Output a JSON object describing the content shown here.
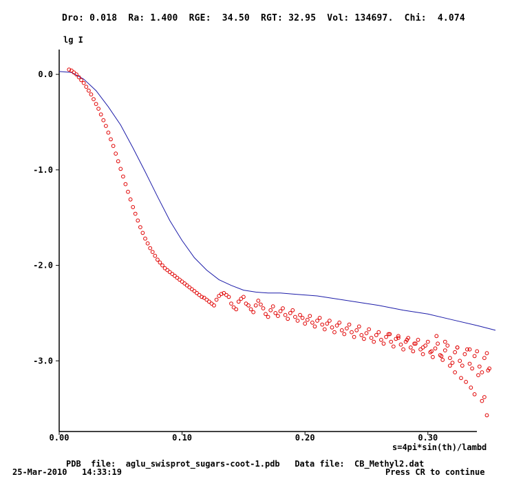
{
  "header": {
    "stats": "Dro: 0.018  Ra: 1.400  RGE:  34.50  RGT: 32.95  Vol: 134697.  Chi:  4.074"
  },
  "footer": {
    "files": "PDB  file:  aglu_swisprot_sugars-coot-1.pdb   Data file:  CB_Methyl2.dat",
    "datetime": "25-Mar-2010   14:33:19",
    "prompt": "Press CR to continue"
  },
  "colors": {
    "fit_line": "#1a1aa8",
    "data_points": "#e00000",
    "axes": "#000000"
  },
  "chart_data": {
    "type": "scatter",
    "ylabel": "lg I",
    "xlabel": "s=4pi*sin(th)/lambd",
    "xlim": [
      0.0,
      0.355
    ],
    "ylim": [
      -3.74,
      0.26
    ],
    "x_ticks": [
      {
        "value": 0.0,
        "label": "0.00"
      },
      {
        "value": 0.1,
        "label": "0.10"
      },
      {
        "value": 0.2,
        "label": "0.20"
      },
      {
        "value": 0.3,
        "label": "0.30"
      }
    ],
    "y_ticks": [
      {
        "value": 0.0,
        "label": "0.0"
      },
      {
        "value": -1.0,
        "label": "-1.0"
      },
      {
        "value": -2.0,
        "label": "-2.0"
      },
      {
        "value": -3.0,
        "label": "-3.0"
      }
    ],
    "grid": false,
    "series": [
      {
        "kind": "line",
        "x": [
          0.0,
          0.01,
          0.02,
          0.03,
          0.04,
          0.05,
          0.06,
          0.07,
          0.08,
          0.09,
          0.1,
          0.11,
          0.12,
          0.13,
          0.14,
          0.15,
          0.16,
          0.17,
          0.18,
          0.19,
          0.2,
          0.21,
          0.22,
          0.24,
          0.26,
          0.28,
          0.3,
          0.32,
          0.34,
          0.355
        ],
        "y": [
          0.03,
          0.02,
          -0.05,
          -0.17,
          -0.34,
          -0.53,
          -0.77,
          -1.02,
          -1.28,
          -1.53,
          -1.74,
          -1.92,
          -2.05,
          -2.15,
          -2.21,
          -2.26,
          -2.28,
          -2.29,
          -2.29,
          -2.3,
          -2.31,
          -2.32,
          -2.34,
          -2.38,
          -2.42,
          -2.47,
          -2.51,
          -2.57,
          -2.63,
          -2.68
        ]
      },
      {
        "kind": "scatter",
        "x": [
          0.008,
          0.01,
          0.012,
          0.014,
          0.016,
          0.018,
          0.02,
          0.022,
          0.024,
          0.026,
          0.028,
          0.03,
          0.032,
          0.034,
          0.036,
          0.038,
          0.04,
          0.042,
          0.044,
          0.046,
          0.048,
          0.05,
          0.052,
          0.054,
          0.056,
          0.058,
          0.06,
          0.062,
          0.064,
          0.066,
          0.068,
          0.07,
          0.072,
          0.074,
          0.076,
          0.078,
          0.08,
          0.082,
          0.084,
          0.086,
          0.088,
          0.09,
          0.092,
          0.094,
          0.096,
          0.098,
          0.1,
          0.102,
          0.104,
          0.106,
          0.108,
          0.11,
          0.112,
          0.114,
          0.116,
          0.118,
          0.12,
          0.122,
          0.124,
          0.126,
          0.128,
          0.13,
          0.132,
          0.134,
          0.136,
          0.138,
          0.14,
          0.142,
          0.144,
          0.146,
          0.148,
          0.15,
          0.152,
          0.154,
          0.156,
          0.158,
          0.16,
          0.162,
          0.164,
          0.166,
          0.168,
          0.17,
          0.172,
          0.174,
          0.176,
          0.178,
          0.18,
          0.182,
          0.184,
          0.186,
          0.188,
          0.19,
          0.192,
          0.194,
          0.196,
          0.198,
          0.2,
          0.202,
          0.204,
          0.206,
          0.208,
          0.21,
          0.212,
          0.214,
          0.216,
          0.218,
          0.22,
          0.222,
          0.224,
          0.226,
          0.228,
          0.23,
          0.232,
          0.234,
          0.236,
          0.238,
          0.24,
          0.242,
          0.244,
          0.246,
          0.248,
          0.25,
          0.252,
          0.254,
          0.256,
          0.258,
          0.26,
          0.262,
          0.264,
          0.266,
          0.268,
          0.27,
          0.272,
          0.274,
          0.276,
          0.278,
          0.28,
          0.282,
          0.284,
          0.286,
          0.288,
          0.29,
          0.292,
          0.294,
          0.296,
          0.298,
          0.3,
          0.302,
          0.304,
          0.306,
          0.308,
          0.31,
          0.312,
          0.314,
          0.316,
          0.318,
          0.32,
          0.322,
          0.324,
          0.326,
          0.328,
          0.33,
          0.332,
          0.334,
          0.336,
          0.338,
          0.34,
          0.342,
          0.344,
          0.346,
          0.348,
          0.35,
          0.296,
          0.303,
          0.311,
          0.318,
          0.322,
          0.327,
          0.331,
          0.335,
          0.338,
          0.341,
          0.344,
          0.346,
          0.348,
          0.349,
          0.269,
          0.276,
          0.283,
          0.289,
          0.307,
          0.314,
          0.324,
          0.334
        ],
        "y": [
          0.05,
          0.04,
          0.02,
          0.0,
          -0.03,
          -0.06,
          -0.09,
          -0.13,
          -0.17,
          -0.21,
          -0.26,
          -0.31,
          -0.36,
          -0.42,
          -0.48,
          -0.54,
          -0.61,
          -0.68,
          -0.75,
          -0.83,
          -0.91,
          -0.99,
          -1.07,
          -1.15,
          -1.23,
          -1.31,
          -1.39,
          -1.46,
          -1.53,
          -1.6,
          -1.66,
          -1.72,
          -1.77,
          -1.82,
          -1.86,
          -1.9,
          -1.94,
          -1.97,
          -2.0,
          -2.03,
          -2.05,
          -2.07,
          -2.09,
          -2.11,
          -2.13,
          -2.15,
          -2.17,
          -2.19,
          -2.21,
          -2.23,
          -2.25,
          -2.27,
          -2.29,
          -2.31,
          -2.33,
          -2.34,
          -2.36,
          -2.38,
          -2.4,
          -2.42,
          -2.36,
          -2.32,
          -2.3,
          -2.29,
          -2.31,
          -2.33,
          -2.4,
          -2.44,
          -2.46,
          -2.38,
          -2.35,
          -2.33,
          -2.4,
          -2.42,
          -2.46,
          -2.49,
          -2.42,
          -2.37,
          -2.41,
          -2.45,
          -2.51,
          -2.54,
          -2.47,
          -2.43,
          -2.5,
          -2.53,
          -2.48,
          -2.45,
          -2.52,
          -2.56,
          -2.5,
          -2.47,
          -2.54,
          -2.58,
          -2.52,
          -2.55,
          -2.61,
          -2.57,
          -2.53,
          -2.6,
          -2.64,
          -2.58,
          -2.55,
          -2.62,
          -2.67,
          -2.61,
          -2.58,
          -2.65,
          -2.7,
          -2.63,
          -2.6,
          -2.68,
          -2.72,
          -2.66,
          -2.62,
          -2.7,
          -2.75,
          -2.68,
          -2.64,
          -2.73,
          -2.77,
          -2.71,
          -2.67,
          -2.76,
          -2.8,
          -2.73,
          -2.7,
          -2.78,
          -2.82,
          -2.75,
          -2.72,
          -2.8,
          -2.85,
          -2.77,
          -2.74,
          -2.83,
          -2.88,
          -2.8,
          -2.76,
          -2.86,
          -2.9,
          -2.82,
          -2.78,
          -2.88,
          -2.93,
          -2.84,
          -2.8,
          -2.91,
          -2.96,
          -2.87,
          -2.82,
          -2.94,
          -2.99,
          -2.89,
          -2.84,
          -2.97,
          -3.02,
          -2.91,
          -2.86,
          -3.0,
          -3.05,
          -2.93,
          -2.88,
          -3.03,
          -3.08,
          -2.95,
          -2.9,
          -3.06,
          -3.12,
          -2.97,
          -2.92,
          -3.08,
          -2.86,
          -2.9,
          -2.95,
          -3.05,
          -3.12,
          -3.18,
          -3.22,
          -3.28,
          -3.35,
          -3.15,
          -3.42,
          -3.38,
          -3.57,
          -3.1,
          -2.72,
          -2.76,
          -2.78,
          -2.82,
          -2.74,
          -2.8,
          -2.86,
          -2.88
        ]
      }
    ]
  }
}
